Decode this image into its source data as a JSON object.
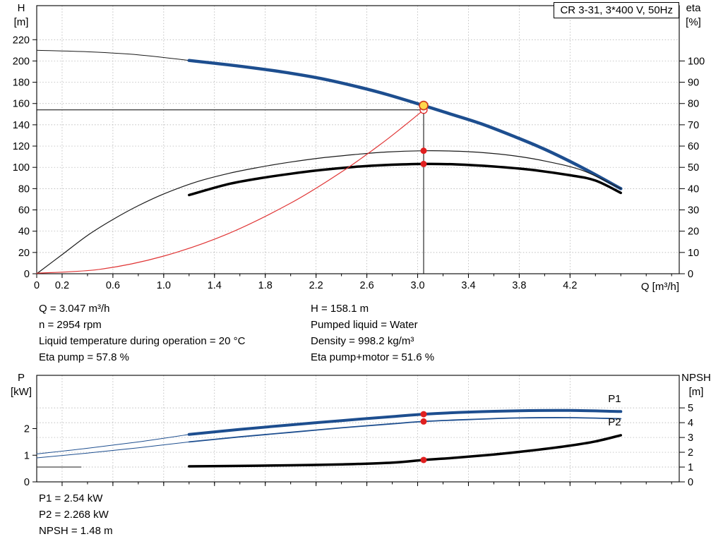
{
  "title_box": {
    "label": "CR 3-31, 3*400 V, 50Hz"
  },
  "colors": {
    "curve_blue": "#1d4e8f",
    "curve_black": "#000000",
    "curve_red": "#e02020",
    "duty_yellow": "#ffd84d",
    "duty_ring": "#cf3a1e",
    "grid": "#a8a8a8"
  },
  "chart_data": [
    {
      "type": "line",
      "name": "pump-performance-chart",
      "grid_axis": "left",
      "x": {
        "label": "Q [m³/h]",
        "min": 0,
        "max": 5.06,
        "minor_step": 0.2,
        "tick_values": [
          0,
          0.2,
          0.6,
          1.0,
          1.4,
          1.8,
          2.2,
          2.6,
          3.0,
          3.4,
          3.8,
          4.2
        ],
        "tick_labels": [
          "0",
          "0.2",
          "0.6",
          "1.0",
          "1.4",
          "1.8",
          "2.2",
          "2.6",
          "3.0",
          "3.4",
          "3.8",
          "4.2"
        ]
      },
      "y_left": {
        "title": "H",
        "unit": "[m]",
        "min": 0,
        "max": 252,
        "ticks": [
          0,
          20,
          40,
          60,
          80,
          100,
          120,
          140,
          160,
          180,
          200,
          220
        ]
      },
      "y_right": {
        "title": "eta",
        "unit": "[%]",
        "min": 0,
        "max": 126,
        "ticks": [
          0,
          10,
          20,
          30,
          40,
          50,
          60,
          70,
          80,
          90,
          100
        ]
      },
      "guides": [
        {
          "name": "head-reference-line",
          "axis": "left",
          "color": "#000000",
          "width": 1,
          "points": [
            [
              0,
              154
            ],
            [
              3.047,
              154
            ]
          ]
        },
        {
          "name": "duty-flow-line",
          "axis": "left",
          "color": "#000000",
          "width": 1,
          "points": [
            [
              3.047,
              0
            ],
            [
              3.047,
              158.1
            ]
          ]
        }
      ],
      "series": [
        {
          "name": "head-curve-extension",
          "axis": "left",
          "color": "#1a1a1a",
          "width": 1,
          "points": [
            [
              0,
              210
            ],
            [
              0.4,
              208.6
            ],
            [
              0.8,
              205.8
            ],
            [
              1.2,
              200.5
            ]
          ]
        },
        {
          "name": "head-curve",
          "axis": "left",
          "color": "#1d4e8f",
          "width": 4.5,
          "points": [
            [
              1.2,
              200.5
            ],
            [
              1.5,
              196.5
            ],
            [
              1.75,
              192.8
            ],
            [
              2.0,
              188.5
            ],
            [
              2.25,
              183.2
            ],
            [
              2.5,
              176.5
            ],
            [
              2.75,
              168.8
            ],
            [
              3.047,
              158.1
            ],
            [
              3.25,
              150.5
            ],
            [
              3.5,
              141
            ],
            [
              3.75,
              129.5
            ],
            [
              4.0,
              117
            ],
            [
              4.3,
              99.5
            ],
            [
              4.6,
              80
            ]
          ]
        },
        {
          "name": "eta-pump-curve",
          "axis": "right",
          "color": "#1a1a1a",
          "width": 1.2,
          "points": [
            [
              0,
              0
            ],
            [
              0.2,
              9
            ],
            [
              0.4,
              18
            ],
            [
              0.6,
              25.5
            ],
            [
              0.8,
              32
            ],
            [
              1.0,
              37.5
            ],
            [
              1.25,
              43
            ],
            [
              1.5,
              47
            ],
            [
              1.75,
              50
            ],
            [
              2.0,
              52.5
            ],
            [
              2.25,
              54.5
            ],
            [
              2.5,
              56
            ],
            [
              2.75,
              57.2
            ],
            [
              3.047,
              57.8
            ],
            [
              3.25,
              57.7
            ],
            [
              3.5,
              57
            ],
            [
              3.75,
              55.5
            ],
            [
              4.0,
              53
            ],
            [
              4.3,
              48.5
            ],
            [
              4.6,
              40
            ]
          ]
        },
        {
          "name": "eta-pump-motor-curve",
          "axis": "right",
          "color": "#000000",
          "width": 3.5,
          "points": [
            [
              1.2,
              37
            ],
            [
              1.5,
              42
            ],
            [
              1.75,
              44.8
            ],
            [
              2.0,
              47
            ],
            [
              2.25,
              48.8
            ],
            [
              2.5,
              50.2
            ],
            [
              2.75,
              51.1
            ],
            [
              3.047,
              51.6
            ],
            [
              3.3,
              51.4
            ],
            [
              3.6,
              50.4
            ],
            [
              3.9,
              48.8
            ],
            [
              4.2,
              46.3
            ],
            [
              4.4,
              43.8
            ],
            [
              4.6,
              38
            ]
          ]
        },
        {
          "name": "system-curve",
          "axis": "left",
          "color": "#e03535",
          "width": 1.2,
          "points": [
            [
              0,
              0.5
            ],
            [
              0.5,
              4.2
            ],
            [
              1.0,
              16.6
            ],
            [
              1.5,
              37.3
            ],
            [
              2.0,
              66.4
            ],
            [
              2.4,
              95.6
            ],
            [
              2.7,
              121
            ],
            [
              2.9,
              139.6
            ],
            [
              3.047,
              154
            ]
          ]
        }
      ],
      "markers": [
        {
          "name": "system-intersection-point",
          "type": "open",
          "axis": "left",
          "q": 3.047,
          "v": 154
        },
        {
          "name": "duty-point",
          "type": "duty",
          "axis": "left",
          "q": 3.047,
          "v": 158.1
        },
        {
          "name": "eta-pump-duty-point",
          "type": "dot",
          "axis": "right",
          "q": 3.047,
          "v": 57.8
        },
        {
          "name": "eta-pump-motor-duty-point",
          "type": "dot",
          "axis": "right",
          "q": 3.047,
          "v": 51.6
        }
      ],
      "labels": []
    },
    {
      "type": "line",
      "name": "power-npsh-chart",
      "grid_axis": "right",
      "x": {
        "label": "",
        "min": 0,
        "max": 5.06,
        "minor_step": 0.2,
        "tick_values": [
          0.2,
          0.6,
          1.0,
          1.4,
          1.8,
          2.2,
          2.6,
          3.0,
          3.4,
          3.8,
          4.2
        ],
        "tick_labels": []
      },
      "y_left": {
        "title": "P",
        "unit": "[kW]",
        "min": 0,
        "max": 4.0,
        "ticks": [
          0,
          1,
          2
        ]
      },
      "y_right": {
        "title": "NPSH",
        "unit": "[m]",
        "min": 0,
        "max": 7.2,
        "ticks": [
          0,
          1,
          2,
          3,
          4,
          5
        ]
      },
      "guides": [],
      "series": [
        {
          "name": "p1-curve-extension",
          "axis": "left",
          "color": "#1d4e8f",
          "width": 1,
          "points": [
            [
              0,
              1.05
            ],
            [
              0.4,
              1.26
            ],
            [
              0.8,
              1.5
            ],
            [
              1.2,
              1.78
            ]
          ]
        },
        {
          "name": "p1-curve",
          "axis": "left",
          "color": "#1d4e8f",
          "width": 4,
          "points": [
            [
              1.2,
              1.78
            ],
            [
              1.6,
              1.97
            ],
            [
              2.0,
              2.14
            ],
            [
              2.4,
              2.3
            ],
            [
              2.8,
              2.45
            ],
            [
              3.047,
              2.54
            ],
            [
              3.4,
              2.62
            ],
            [
              3.8,
              2.67
            ],
            [
              4.2,
              2.68
            ],
            [
              4.6,
              2.64
            ]
          ]
        },
        {
          "name": "p2-curve-extension",
          "axis": "left",
          "color": "#1d4e8f",
          "width": 1,
          "points": [
            [
              0,
              0.9
            ],
            [
              0.4,
              1.08
            ],
            [
              0.8,
              1.28
            ],
            [
              1.2,
              1.5
            ]
          ]
        },
        {
          "name": "p2-curve",
          "axis": "left",
          "color": "#1d4e8f",
          "width": 1.8,
          "points": [
            [
              1.2,
              1.5
            ],
            [
              1.6,
              1.69
            ],
            [
              2.0,
              1.86
            ],
            [
              2.4,
              2.03
            ],
            [
              2.8,
              2.18
            ],
            [
              3.047,
              2.268
            ],
            [
              3.4,
              2.34
            ],
            [
              3.8,
              2.4
            ],
            [
              4.2,
              2.41
            ],
            [
              4.6,
              2.37
            ]
          ]
        },
        {
          "name": "npsh-curve-extension",
          "axis": "right",
          "color": "#1a1a1a",
          "width": 1,
          "points": [
            [
              0,
              1.0
            ],
            [
              0.35,
              1.0
            ]
          ]
        },
        {
          "name": "npsh-curve",
          "axis": "right",
          "color": "#000000",
          "width": 3.5,
          "points": [
            [
              1.2,
              1.05
            ],
            [
              1.6,
              1.08
            ],
            [
              2.0,
              1.12
            ],
            [
              2.4,
              1.18
            ],
            [
              2.8,
              1.3
            ],
            [
              3.047,
              1.48
            ],
            [
              3.3,
              1.63
            ],
            [
              3.6,
              1.85
            ],
            [
              3.9,
              2.12
            ],
            [
              4.2,
              2.45
            ],
            [
              4.4,
              2.73
            ],
            [
              4.6,
              3.15
            ]
          ]
        }
      ],
      "markers": [
        {
          "name": "p1-duty-point",
          "type": "dot",
          "axis": "left",
          "q": 3.047,
          "v": 2.54
        },
        {
          "name": "p2-duty-point",
          "type": "dot",
          "axis": "left",
          "q": 3.047,
          "v": 2.268
        },
        {
          "name": "npsh-duty-point",
          "type": "dot",
          "axis": "right",
          "q": 3.047,
          "v": 1.48
        }
      ],
      "labels": [
        {
          "name": "p1-series-label",
          "text": "P1",
          "axis": "left",
          "q": 4.5,
          "v": 3.0,
          "color": "#1d4e8f"
        },
        {
          "name": "p2-series-label",
          "text": "P2",
          "axis": "left",
          "q": 4.5,
          "v": 2.12,
          "color": "#1d4e8f"
        }
      ]
    }
  ],
  "info_top_left": [
    "Q = 3.047 m³/h",
    "n = 2954 rpm",
    "Liquid temperature during operation = 20 °C",
    "Eta pump = 57.8 %"
  ],
  "info_top_right": [
    "H = 158.1 m",
    "Pumped liquid = Water",
    "Density = 998.2 kg/m³",
    "Eta pump+motor = 51.6 %"
  ],
  "info_bottom": [
    "P1 = 2.54 kW",
    "P2 = 2.268 kW",
    "NPSH = 1.48 m"
  ]
}
